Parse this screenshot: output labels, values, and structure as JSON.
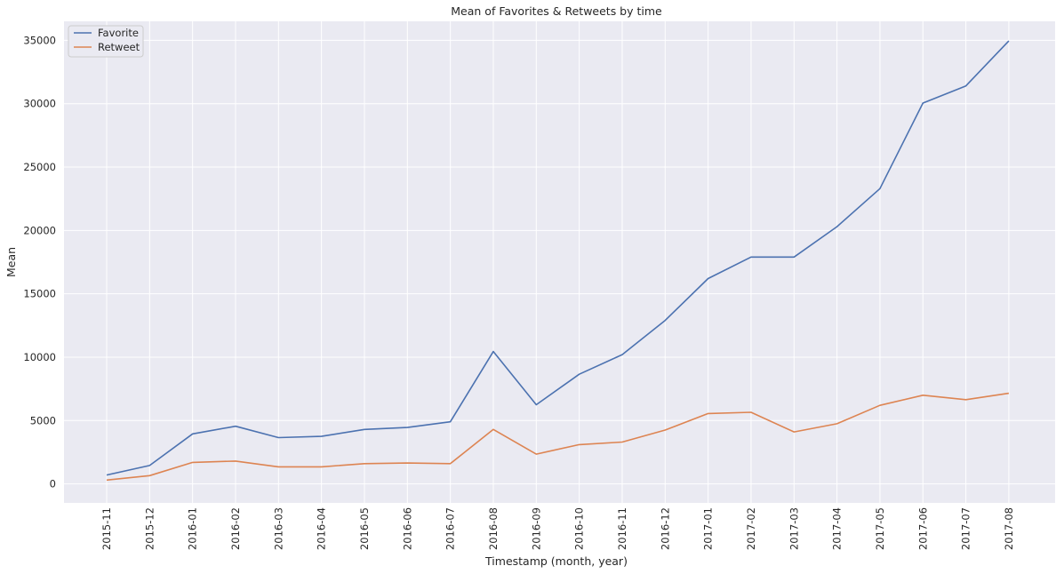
{
  "chart_data": {
    "type": "line",
    "title": "Mean of Favorites & Retweets by time",
    "xlabel": "Timestamp (month, year)",
    "ylabel": "Mean",
    "ylim": [
      -1500,
      36500
    ],
    "yticks": [
      0,
      5000,
      10000,
      15000,
      20000,
      25000,
      30000,
      35000
    ],
    "grid": true,
    "legend_position": "top-left",
    "categories": [
      "2015-11",
      "2015-12",
      "2016-01",
      "2016-02",
      "2016-03",
      "2016-04",
      "2016-05",
      "2016-06",
      "2016-07",
      "2016-08",
      "2016-09",
      "2016-10",
      "2016-11",
      "2016-12",
      "2017-01",
      "2017-02",
      "2017-03",
      "2017-04",
      "2017-05",
      "2017-06",
      "2017-07",
      "2017-08"
    ],
    "series": [
      {
        "name": "Favorite",
        "color": "#4c72b0",
        "values": [
          700,
          1450,
          3950,
          4550,
          3650,
          3750,
          4300,
          4450,
          4900,
          10450,
          6250,
          8650,
          10200,
          12900,
          16200,
          17900,
          17900,
          20300,
          23300,
          30050,
          31400,
          34950
        ]
      },
      {
        "name": "Retweet",
        "color": "#dd8452",
        "values": [
          300,
          650,
          1700,
          1800,
          1350,
          1350,
          1600,
          1650,
          1600,
          4300,
          2350,
          3100,
          3300,
          4250,
          5550,
          5650,
          4100,
          4750,
          6200,
          7000,
          6650,
          7150
        ]
      }
    ]
  }
}
